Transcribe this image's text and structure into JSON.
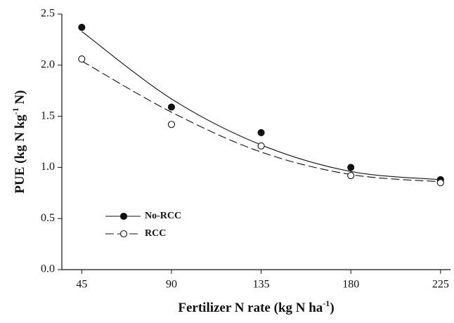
{
  "chart_data": {
    "type": "scatter",
    "x_label": [
      "Fertilizer N rate (kg N ha",
      "-1",
      ")"
    ],
    "y_label": [
      "PUE (kg N kg",
      "-1",
      " N)"
    ],
    "x": [
      45,
      90,
      135,
      180,
      225
    ],
    "series": [
      {
        "name": "No-RCC",
        "color": "#111111",
        "marker": "filled",
        "line_style": "solid",
        "values": [
          2.37,
          1.59,
          1.34,
          1.0,
          0.88
        ],
        "fit_values": [
          2.33,
          1.67,
          1.22,
          0.96,
          0.88
        ]
      },
      {
        "name": "RCC",
        "color": "#111111",
        "marker": "open",
        "line_style": "dashed",
        "values": [
          2.06,
          1.42,
          1.21,
          0.92,
          0.85
        ],
        "fit_values": [
          2.04,
          1.54,
          1.15,
          0.93,
          0.86
        ]
      }
    ],
    "xlim": [
      35,
      230
    ],
    "xticks": [
      45,
      90,
      135,
      180,
      225
    ],
    "ylim": [
      0,
      2.5
    ],
    "yticks": [
      {
        "value": 0,
        "label": "0.0"
      },
      0.5,
      {
        "value": 1,
        "label": "1.0"
      },
      1.5,
      {
        "value": 2,
        "label": "2.0"
      },
      2.5
    ],
    "legend": "lower-left"
  }
}
